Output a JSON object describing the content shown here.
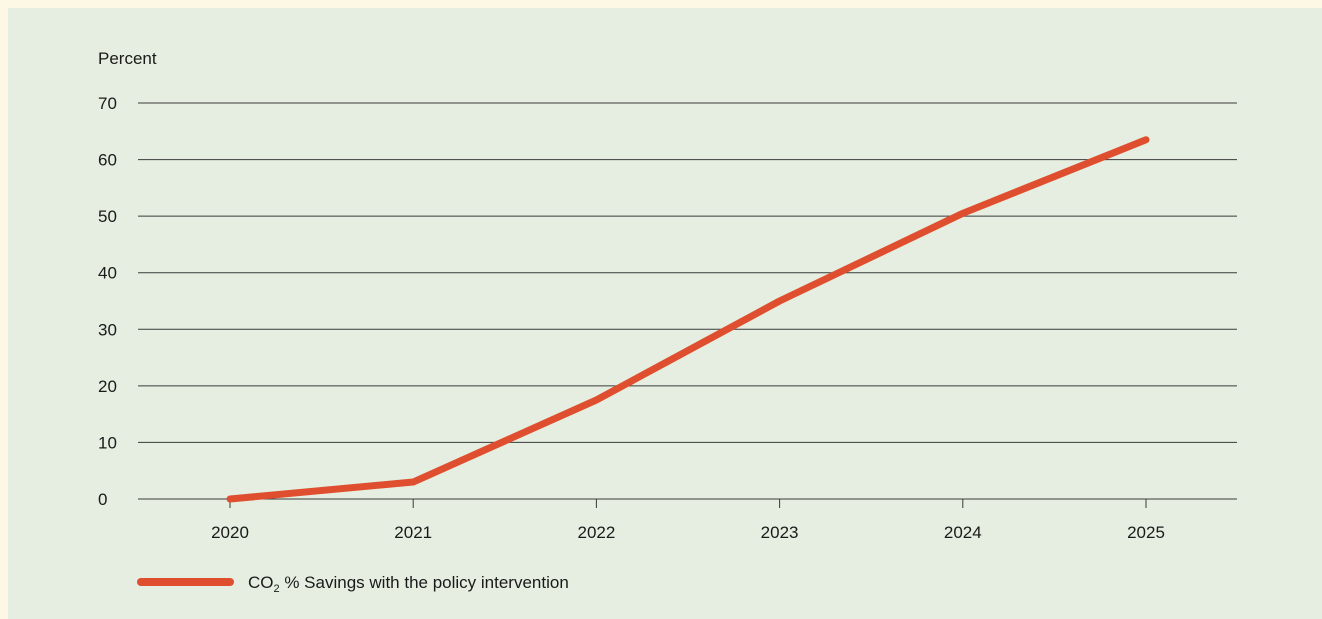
{
  "chart_data": {
    "type": "line",
    "title": "",
    "xlabel": "",
    "ylabel": "Percent",
    "categories": [
      "2020",
      "2021",
      "2022",
      "2023",
      "2024",
      "2025"
    ],
    "ylim": [
      0,
      70
    ],
    "yticks": [
      "0",
      "10",
      "20",
      "30",
      "40",
      "50",
      "60",
      "70"
    ],
    "grid": true,
    "legend_position": "bottom-left",
    "series": [
      {
        "name_parts": [
          "CO",
          "2",
          " % Savings with the policy intervention"
        ],
        "color": "#df4f2f",
        "values": [
          0,
          3,
          17.5,
          35,
          50.5,
          63.5
        ]
      }
    ]
  }
}
